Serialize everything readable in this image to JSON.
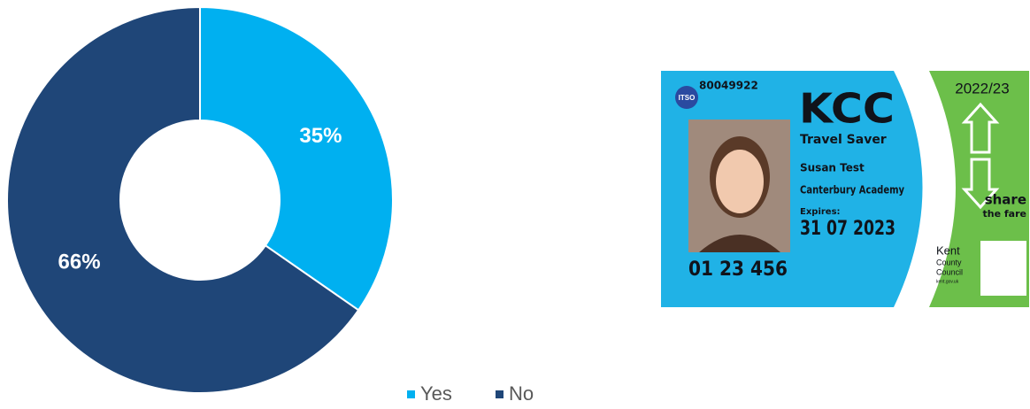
{
  "chart_data": {
    "type": "pie",
    "categories": [
      "Yes",
      "No"
    ],
    "values": [
      35,
      66
    ],
    "value_labels": [
      "35%",
      "66%"
    ],
    "colors": [
      "#00b0f0",
      "#1f4678"
    ],
    "donut": true,
    "legend": "bottom"
  },
  "card": {
    "number": "80049922",
    "badge": "ITSO",
    "brand": "KCC",
    "product": "Travel Saver",
    "name": "Susan Test",
    "school": "Canterbury Academy",
    "expires_label": "Expires:",
    "expires": "31 07 2023",
    "id": "01 23 456",
    "year": "2022/23",
    "share": "share",
    "the_fare": "the fare",
    "council_1": "Kent",
    "council_2": "County",
    "council_3": "Council",
    "council_url": "kent.gov.uk"
  }
}
